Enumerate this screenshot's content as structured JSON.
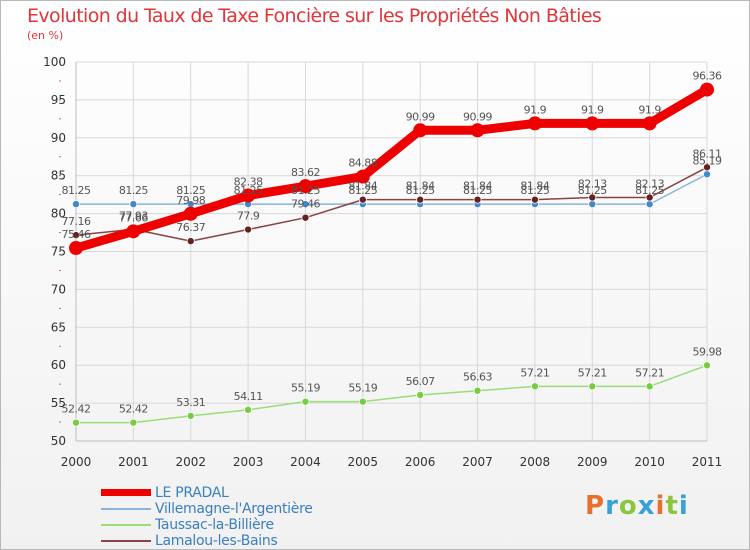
{
  "title": "Evolution du Taux de Taxe Foncière sur les Propriétés Non Bâties",
  "subtitle": "(en %)",
  "logo": "Proxiti",
  "chart_data": {
    "type": "line",
    "title": "Evolution du Taux de Taxe Foncière sur les Propriétés Non Bâties",
    "ylabel": "(en %)",
    "xlabel": "",
    "ylim": [
      50,
      100
    ],
    "yticks": [
      50,
      55,
      60,
      65,
      70,
      75,
      80,
      85,
      90,
      95,
      100
    ],
    "categories": [
      "2000",
      "2001",
      "2002",
      "2003",
      "2004",
      "2005",
      "2006",
      "2007",
      "2008",
      "2009",
      "2010",
      "2011"
    ],
    "series": [
      {
        "name": "Taussac-la-Billière",
        "color": "#99dd77",
        "marker": "#77cc44",
        "values": [
          52.42,
          52.42,
          53.31,
          54.11,
          55.19,
          55.19,
          56.07,
          56.63,
          57.21,
          57.21,
          57.21,
          59.98
        ],
        "labels": [
          "52.42",
          "52.42",
          "53.31",
          "54.11",
          "55.19",
          "55.19",
          "56.07",
          "56.63",
          "57.21",
          "57.21",
          "57.21",
          "59.98"
        ]
      },
      {
        "name": "Villemagne-l'Argentière",
        "color": "#88b4dc",
        "marker": "#4488cc",
        "values": [
          81.25,
          81.25,
          81.25,
          81.25,
          81.25,
          81.25,
          81.25,
          81.25,
          81.25,
          81.25,
          81.25,
          85.19
        ],
        "labels": [
          "81.25",
          "81.25",
          "81.25",
          "81.25",
          "81.25",
          "81.25",
          "81.25",
          "81.25",
          "81.25",
          "81.25",
          "81.25",
          "85.19"
        ]
      },
      {
        "name": "Lamalou-les-Bains",
        "color": "#884444",
        "marker": "#662222",
        "values": [
          77.16,
          77.93,
          76.37,
          77.9,
          79.46,
          81.84,
          81.84,
          81.84,
          81.84,
          82.13,
          82.13,
          86.11
        ],
        "labels": [
          "77.16",
          "77.93",
          "76.37",
          "77.9",
          "79.46",
          "81.84",
          "81.84",
          "81.84",
          "81.84",
          "82.13",
          "82.13",
          "86.11"
        ]
      },
      {
        "name": "LE PRADAL",
        "color": "#ee0000",
        "marker": "#ee0000",
        "values": [
          75.46,
          77.66,
          79.98,
          82.38,
          83.62,
          84.88,
          90.99,
          90.99,
          91.9,
          91.9,
          91.9,
          96.36
        ],
        "labels": [
          "75.46",
          "77.66",
          "79.98",
          "82.38",
          "83.62",
          "84.88",
          "90.99",
          "90.99",
          "91.9",
          "91.9",
          "91.9",
          "96.36"
        ]
      }
    ],
    "legend": [
      {
        "name": "LE PRADAL",
        "color": "#ee0000"
      },
      {
        "name": "Villemagne-l'Argentière",
        "color": "#88b4dc"
      },
      {
        "name": "Taussac-la-Billière",
        "color": "#99dd77"
      },
      {
        "name": "Lamalou-les-Bains",
        "color": "#884444"
      }
    ],
    "legend_position": "bottom-left",
    "grid": true
  }
}
